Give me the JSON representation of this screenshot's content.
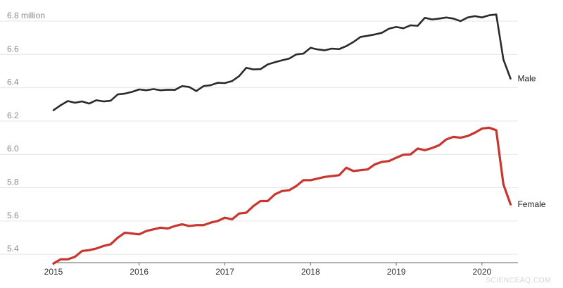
{
  "chart_data": {
    "type": "line",
    "title": "",
    "xlabel": "",
    "ylabel": "",
    "ytick_labels": [
      "5.4",
      "5.6",
      "5.8",
      "6.0",
      "6.2",
      "6.4",
      "6.6",
      "6.8 million"
    ],
    "yticks": [
      5.4,
      5.6,
      5.8,
      6.0,
      6.2,
      6.4,
      6.6,
      6.8
    ],
    "ylim": [
      5.35,
      6.8
    ],
    "xlim": [
      2015.0,
      2020.42
    ],
    "xticks": [
      "2015",
      "2016",
      "2017",
      "2018",
      "2019",
      "2020"
    ],
    "xtick_values": [
      2015,
      2016,
      2017,
      2018,
      2019,
      2020
    ],
    "grid": true,
    "legend": "none",
    "series": [
      {
        "name": "Male",
        "color": "#2b2b2b",
        "x_start": 2015.0,
        "x_step": 0.0833333,
        "values": [
          6.265,
          6.295,
          6.32,
          6.31,
          6.318,
          6.305,
          6.325,
          6.318,
          6.322,
          6.36,
          6.365,
          6.375,
          6.39,
          6.385,
          6.392,
          6.385,
          6.388,
          6.387,
          6.41,
          6.405,
          6.38,
          6.41,
          6.415,
          6.43,
          6.428,
          6.44,
          6.47,
          6.52,
          6.51,
          6.512,
          6.54,
          6.553,
          6.565,
          6.575,
          6.6,
          6.605,
          6.64,
          6.63,
          6.625,
          6.635,
          6.632,
          6.65,
          6.675,
          6.705,
          6.712,
          6.72,
          6.73,
          6.755,
          6.765,
          6.757,
          6.775,
          6.772,
          6.82,
          6.81,
          6.815,
          6.822,
          6.815,
          6.8,
          6.822,
          6.83,
          6.822,
          6.835,
          6.84,
          6.57,
          6.455
        ]
      },
      {
        "name": "Female",
        "color": "#c8362e",
        "x_start": 2015.0,
        "x_step": 0.0833333,
        "values": [
          5.345,
          5.37,
          5.37,
          5.385,
          5.42,
          5.425,
          5.435,
          5.45,
          5.46,
          5.5,
          5.53,
          5.525,
          5.52,
          5.54,
          5.55,
          5.56,
          5.555,
          5.57,
          5.58,
          5.57,
          5.575,
          5.575,
          5.59,
          5.6,
          5.62,
          5.61,
          5.645,
          5.65,
          5.69,
          5.72,
          5.72,
          5.76,
          5.78,
          5.785,
          5.81,
          5.845,
          5.845,
          5.855,
          5.865,
          5.87,
          5.875,
          5.92,
          5.9,
          5.905,
          5.91,
          5.94,
          5.955,
          5.96,
          5.98,
          5.998,
          6.0,
          6.035,
          6.025,
          6.038,
          6.055,
          6.09,
          6.105,
          6.1,
          6.11,
          6.13,
          6.155,
          6.16,
          6.145,
          5.82,
          5.7
        ]
      }
    ]
  },
  "watermark": "SCIENCEAQ.COM"
}
